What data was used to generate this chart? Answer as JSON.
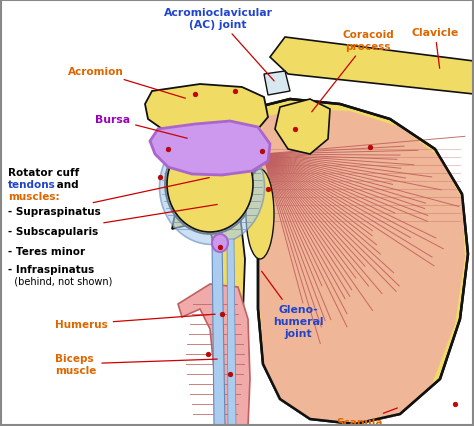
{
  "bg_color": "#ffffff",
  "colors": {
    "yellow": "#F0DC64",
    "yellow_light": "#F8EE90",
    "muscle_red": "#F0AAAA",
    "muscle_red_dark": "#C06060",
    "bursa_purple": "#AA66CC",
    "bursa_light": "#CC99EE",
    "tendon_blue": "#AACCEE",
    "tendon_dark": "#6688BB",
    "bone_outline": "#111111",
    "red_dot": "#CC0000",
    "label_orange": "#DD6600",
    "label_blue": "#2244CC",
    "label_black": "#000000",
    "label_purple": "#9900BB",
    "line_red": "#CC0000"
  },
  "labels": {
    "acromion": "Acromion",
    "ac_joint": "Acromioclavicular\n(AC) joint",
    "coracoid": "Coracoid\nprocess",
    "clavicle": "Clavicle",
    "bursa": "Bursa",
    "supraspinatus": "- Supraspinatus",
    "subscapularis": "- Subscapularis",
    "teres_minor": "- Teres minor",
    "infraspinatus": "- Infraspinatus",
    "infraspinatus2": "  (behind, not shown)",
    "humerus": "Humerus",
    "biceps": "Biceps\nmuscle",
    "glenohumeral": "Gleno-\nhumeral\njoint",
    "scapula": "Scapula"
  }
}
